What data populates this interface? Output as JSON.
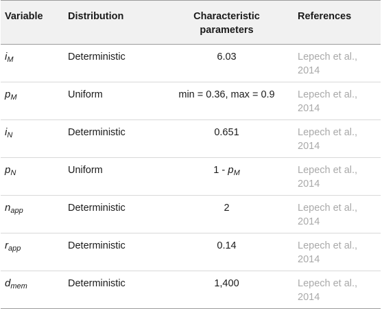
{
  "table": {
    "headers": {
      "variable": "Variable",
      "distribution": "Distribution",
      "parameters_line1": "Characteristic",
      "parameters_line2": "parameters",
      "references": "References"
    },
    "rows": [
      {
        "var_base": "i",
        "var_sub": "M",
        "distribution": "Deterministic",
        "param_text": "6.03",
        "param_var_base": "",
        "param_var_sub": "",
        "ref_line1": "Lepech et al.,",
        "ref_line2": "2014"
      },
      {
        "var_base": "p",
        "var_sub": "M",
        "distribution": "Uniform",
        "param_text": "min = 0.36, max = 0.9",
        "param_var_base": "",
        "param_var_sub": "",
        "ref_line1": "Lepech et al.,",
        "ref_line2": "2014"
      },
      {
        "var_base": "i",
        "var_sub": "N",
        "distribution": "Deterministic",
        "param_text": "0.651",
        "param_var_base": "",
        "param_var_sub": "",
        "ref_line1": "Lepech et al.,",
        "ref_line2": "2014"
      },
      {
        "var_base": "p",
        "var_sub": "N",
        "distribution": "Uniform",
        "param_text": "1 - ",
        "param_var_base": "p",
        "param_var_sub": "M",
        "ref_line1": "Lepech et al.,",
        "ref_line2": "2014"
      },
      {
        "var_base": "n",
        "var_sub": "app",
        "distribution": "Deterministic",
        "param_text": "2",
        "param_var_base": "",
        "param_var_sub": "",
        "ref_line1": "Lepech et al.,",
        "ref_line2": "2014"
      },
      {
        "var_base": "r",
        "var_sub": "app",
        "distribution": "Deterministic",
        "param_text": "0.14",
        "param_var_base": "",
        "param_var_sub": "",
        "ref_line1": "Lepech et al.,",
        "ref_line2": "2014"
      },
      {
        "var_base": "d",
        "var_sub": "mem",
        "distribution": "Deterministic",
        "param_text": "1,400",
        "param_var_base": "",
        "param_var_sub": "",
        "ref_line1": "Lepech et al.,",
        "ref_line2": "2014"
      }
    ]
  },
  "colors": {
    "header_bg": "#f1f1f1",
    "reference_text": "#a9a9a9",
    "body_text": "#1a1a1a"
  }
}
